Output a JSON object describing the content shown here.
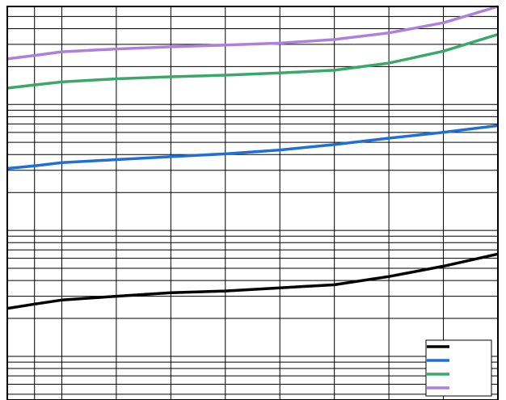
{
  "chart_data": {
    "type": "line",
    "title": "",
    "xlabel": "",
    "ylabel": "",
    "yscale": "log",
    "grid": true,
    "legend_position": "bottom-right",
    "x": [
      0,
      0.5,
      1,
      2,
      3,
      4,
      5,
      6,
      7,
      8,
      9
    ],
    "ylim": [
      4.5,
      6000
    ],
    "series": [
      {
        "color": "#000000",
        "values": [
          24,
          26,
          28,
          30,
          32,
          33,
          35,
          37,
          43,
          52,
          65
        ]
      },
      {
        "color": "#1f6fd6",
        "values": [
          310,
          325,
          345,
          365,
          385,
          405,
          435,
          480,
          540,
          600,
          680
        ]
      },
      {
        "color": "#3aa86b",
        "values": [
          1350,
          1430,
          1510,
          1600,
          1660,
          1710,
          1780,
          1870,
          2130,
          2650,
          3600
        ]
      },
      {
        "color": "#b07fdc",
        "values": [
          2300,
          2450,
          2620,
          2760,
          2870,
          2960,
          3070,
          3280,
          3700,
          4450,
          6000
        ]
      }
    ]
  }
}
